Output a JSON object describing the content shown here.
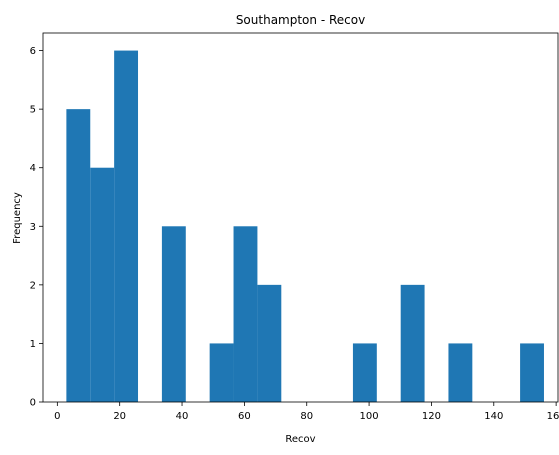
{
  "chart_data": {
    "type": "bar",
    "title": "Southampton - Recov",
    "xlabel": "Recov",
    "ylabel": "Frequency",
    "xlim": [
      -4.6,
      160.6
    ],
    "ylim": [
      0,
      6.3
    ],
    "xticks": [
      0,
      20,
      40,
      60,
      80,
      100,
      120,
      140,
      160
    ],
    "yticks": [
      0,
      1,
      2,
      3,
      4,
      5,
      6
    ],
    "bins": [
      {
        "start": 2.9,
        "end": 10.56,
        "count": 5
      },
      {
        "start": 10.56,
        "end": 18.22,
        "count": 4
      },
      {
        "start": 18.22,
        "end": 25.88,
        "count": 6
      },
      {
        "start": 25.88,
        "end": 33.54,
        "count": 0
      },
      {
        "start": 33.54,
        "end": 41.2,
        "count": 3
      },
      {
        "start": 41.2,
        "end": 48.86,
        "count": 0
      },
      {
        "start": 48.86,
        "end": 56.52,
        "count": 1
      },
      {
        "start": 56.52,
        "end": 64.18,
        "count": 3
      },
      {
        "start": 64.18,
        "end": 71.84,
        "count": 2
      },
      {
        "start": 71.84,
        "end": 79.5,
        "count": 0
      },
      {
        "start": 79.5,
        "end": 87.16,
        "count": 0
      },
      {
        "start": 87.16,
        "end": 94.82,
        "count": 0
      },
      {
        "start": 94.82,
        "end": 102.48,
        "count": 1
      },
      {
        "start": 102.48,
        "end": 110.14,
        "count": 0
      },
      {
        "start": 110.14,
        "end": 117.8,
        "count": 2
      },
      {
        "start": 117.8,
        "end": 125.46,
        "count": 0
      },
      {
        "start": 125.46,
        "end": 133.12,
        "count": 1
      },
      {
        "start": 133.12,
        "end": 140.78,
        "count": 0
      },
      {
        "start": 140.78,
        "end": 148.44,
        "count": 0
      },
      {
        "start": 148.44,
        "end": 156.1,
        "count": 1
      }
    ],
    "bar_color": "#1f77b4",
    "grid": false,
    "legend": "none"
  }
}
